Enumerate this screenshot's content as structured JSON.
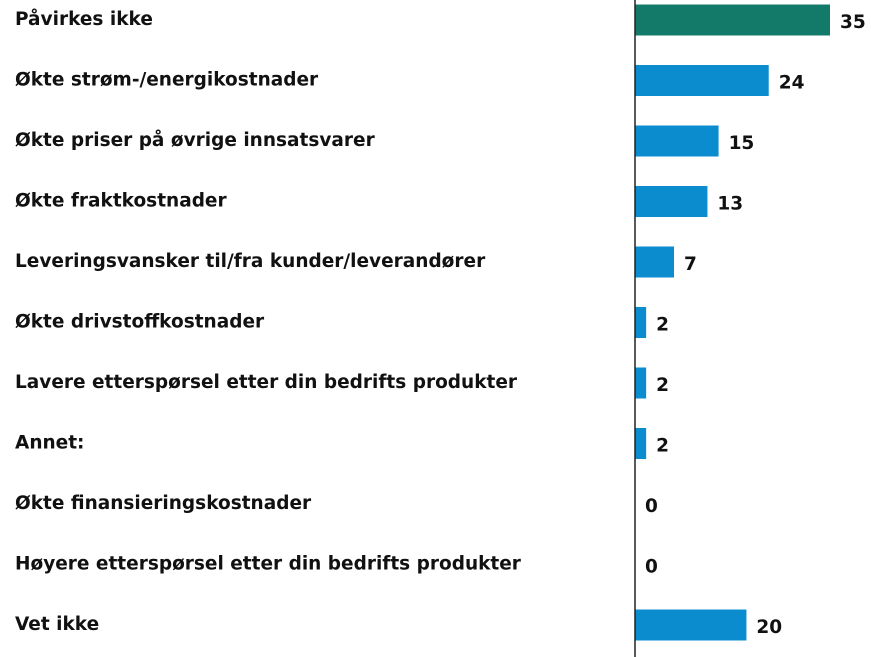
{
  "chart_data": {
    "type": "bar",
    "orientation": "horizontal",
    "categories": [
      "Påvirkes ikke",
      "Økte strøm-/energikostnader",
      "Økte priser på øvrige innsatsvarer",
      "Økte fraktkostnader",
      "Leveringsvansker til/fra kunder/leverandører",
      "Økte drivstoffkostnader",
      "Lavere etterspørsel etter din bedrifts produkter",
      "Annet:",
      "Økte finansieringskostnader",
      "Høyere etterspørsel etter din bedrifts produkter",
      "Vet ikke"
    ],
    "values": [
      35,
      24,
      15,
      13,
      7,
      2,
      2,
      2,
      0,
      0,
      20
    ],
    "colors": [
      "#137a69",
      "#0a8ccf",
      "#0a8ccf",
      "#0a8ccf",
      "#0a8ccf",
      "#0a8ccf",
      "#0a8ccf",
      "#0a8ccf",
      "#0a8ccf",
      "#0a8ccf",
      "#0a8ccf"
    ]
  }
}
